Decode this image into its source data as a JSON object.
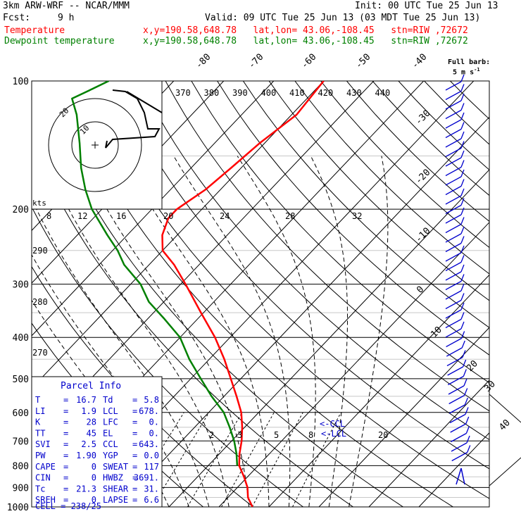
{
  "header": {
    "model": "3km ARW-WRF -- NCAR/MMM",
    "init": "Init: 00 UTC Tue 25 Jun 13",
    "fcst_label": "Fcst:",
    "fcst_value": "9 h",
    "valid": "Valid: 09 UTC Tue 25 Jun 13 (03 MDT Tue 25 Jun 13)",
    "temp_name": "Temperature",
    "dew_name": "Dewpoint temperature",
    "loc_info": "x,y=190.58,648.78   lat,lon= 43.06,-108.45   stn=RIW ,72672",
    "barb_key_title": "Full barb:",
    "barb_key_value": "5 m s",
    "barb_key_exp": "-1"
  },
  "colors": {
    "temperature": "#ff0000",
    "dewpoint": "#008000",
    "text_blue": "#0000cc",
    "barbs": "#0000cc"
  },
  "chart_data": {
    "type": "line",
    "title": "",
    "diagram": "skew-T log-p",
    "pressure_levels": [
      "100",
      "200",
      "300",
      "400",
      "500",
      "600",
      "700",
      "800",
      "900",
      "1000"
    ],
    "isotherm_labels": [
      "-80",
      "-70",
      "-60",
      "-50",
      "-40",
      "-30",
      "-20",
      "-10",
      "0",
      "10",
      "20",
      "30",
      "40"
    ],
    "theta_labels": [
      "370",
      "380",
      "390",
      "400",
      "410",
      "420",
      "430",
      "440"
    ],
    "theta_left_labels": [
      "290",
      "280",
      "270"
    ],
    "hodograph_ring_labels": [
      "20",
      "10"
    ],
    "hodograph_unit": "kts",
    "wind_axis_labels": [
      "8",
      "12",
      "16",
      "20",
      "24",
      "28",
      "32"
    ],
    "mixing_ratio_labels": [
      "2",
      "3",
      "5",
      "8",
      "20"
    ],
    "ccl_label": "<-CCL",
    "lcl_label": "<-LCL",
    "series": [
      {
        "name": "Temperature",
        "points": [
          [
            1000,
            16.7
          ],
          [
            950,
            14.0
          ],
          [
            900,
            12.0
          ],
          [
            850,
            9.3
          ],
          [
            800,
            6.2
          ],
          [
            750,
            4.0
          ],
          [
            700,
            2.0
          ],
          [
            650,
            -0.5
          ],
          [
            600,
            -3.5
          ],
          [
            550,
            -7.5
          ],
          [
            500,
            -12.0
          ],
          [
            450,
            -17.0
          ],
          [
            400,
            -23.0
          ],
          [
            350,
            -30.5
          ],
          [
            300,
            -39.0
          ],
          [
            270,
            -45.0
          ],
          [
            250,
            -50.0
          ],
          [
            230,
            -53.0
          ],
          [
            210,
            -55.0
          ],
          [
            200,
            -55.0
          ],
          [
            180,
            -53.0
          ],
          [
            160,
            -52.0
          ],
          [
            140,
            -51.0
          ],
          [
            120,
            -49.0
          ],
          [
            100,
            -50.0
          ]
        ]
      },
      {
        "name": "Dewpoint temperature",
        "points": [
          [
            800,
            5.8
          ],
          [
            750,
            3.4
          ],
          [
            700,
            0.5
          ],
          [
            650,
            -3.0
          ],
          [
            600,
            -7.0
          ],
          [
            550,
            -12.5
          ],
          [
            500,
            -18.0
          ],
          [
            450,
            -24.0
          ],
          [
            400,
            -30.0
          ],
          [
            360,
            -37.0
          ],
          [
            330,
            -43.0
          ],
          [
            300,
            -48.0
          ],
          [
            270,
            -55.0
          ],
          [
            250,
            -59.0
          ],
          [
            230,
            -64.0
          ],
          [
            200,
            -72.0
          ],
          [
            180,
            -77.0
          ],
          [
            160,
            -82.0
          ],
          [
            140,
            -87.0
          ],
          [
            120,
            -93.0
          ],
          [
            110,
            -97.0
          ],
          [
            105,
            -95.0
          ],
          [
            100,
            -93.0
          ]
        ]
      }
    ]
  },
  "parcel_info": {
    "title": "Parcel Info",
    "rows": [
      {
        "l1": "T",
        "v1": "16.7",
        "l2": "Td",
        "v2": "5.8"
      },
      {
        "l1": "LI",
        "v1": "1.9",
        "l2": "LCL",
        "v2": "678."
      },
      {
        "l1": "K",
        "v1": "28",
        "l2": "LFC",
        "v2": "0."
      },
      {
        "l1": "TT",
        "v1": "45",
        "l2": "EL",
        "v2": "0."
      },
      {
        "l1": "SVI",
        "v1": "2.5",
        "l2": "CCL",
        "v2": "643."
      },
      {
        "l1": "PW",
        "v1": "1.90",
        "l2": "YGP",
        "v2": "0.0"
      },
      {
        "l1": "CAPE",
        "v1": "0",
        "l2": "SWEAT",
        "v2": "117"
      },
      {
        "l1": "CIN",
        "v1": "0",
        "l2": "HWBZ",
        "v2": "3691."
      },
      {
        "l1": "Tc",
        "v1": "21.3",
        "l2": "SHEAR",
        "v2": "31."
      },
      {
        "l1": "SREH",
        "v1": "0",
        "l2": "LAPSE",
        "v2": "6.6"
      }
    ],
    "cell": "CELL = 238/25"
  }
}
